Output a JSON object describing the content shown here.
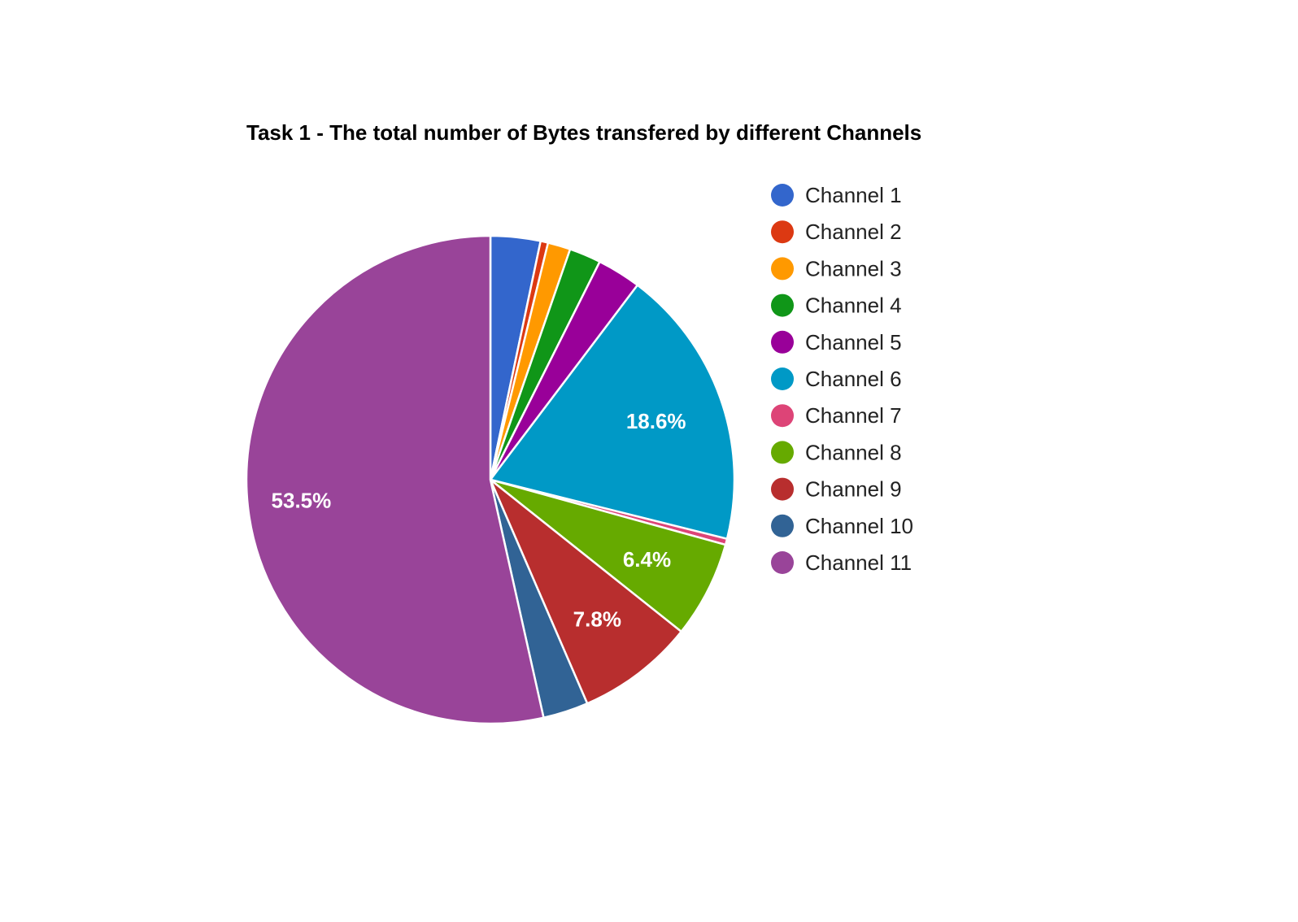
{
  "chart_data": {
    "type": "pie",
    "title": "Task 1 - The total number of Bytes transfered by different Channels",
    "legend_position": "right",
    "start_angle_deg": 0,
    "direction": "clockwise",
    "slices": [
      {
        "name": "Channel 1",
        "value": 3.3,
        "color": "#3366cc",
        "label": ""
      },
      {
        "name": "Channel 2",
        "value": 0.5,
        "color": "#dc3912",
        "label": ""
      },
      {
        "name": "Channel 3",
        "value": 1.5,
        "color": "#ff9900",
        "label": ""
      },
      {
        "name": "Channel 4",
        "value": 2.1,
        "color": "#109618",
        "label": ""
      },
      {
        "name": "Channel 5",
        "value": 2.9,
        "color": "#990099",
        "label": ""
      },
      {
        "name": "Channel 6",
        "value": 18.6,
        "color": "#0099c6",
        "label": "18.6%"
      },
      {
        "name": "Channel 7",
        "value": 0.4,
        "color": "#dd4477",
        "label": ""
      },
      {
        "name": "Channel 8",
        "value": 6.4,
        "color": "#66aa00",
        "label": "6.4%"
      },
      {
        "name": "Channel 9",
        "value": 7.8,
        "color": "#b82e2e",
        "label": "7.8%"
      },
      {
        "name": "Channel 10",
        "value": 3.0,
        "color": "#316395",
        "label": ""
      },
      {
        "name": "Channel 11",
        "value": 53.5,
        "color": "#994499",
        "label": "53.5%"
      }
    ]
  }
}
